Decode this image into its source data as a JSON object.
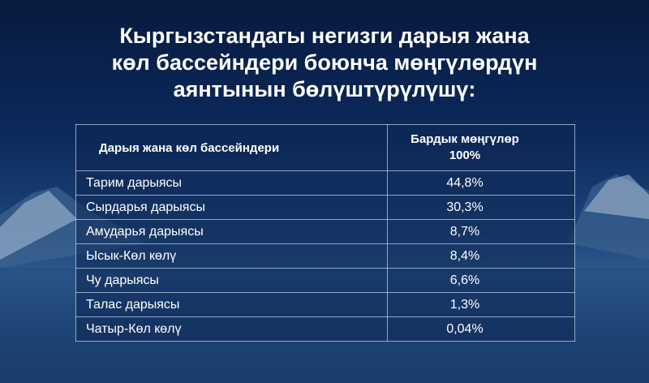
{
  "title_lines": [
    "Кыргызстандагы негизги дарыя жана",
    "көл бассейндери боюнча мөңгүлөрдүн",
    "аянтынын бөлүштүрүлүшү:"
  ],
  "table": {
    "header": [
      "Дарыя жана көл бассейндери",
      [
        "Бардык мөңгүлөр",
        "100%"
      ]
    ],
    "rows": [
      [
        "Тарим дарыясы",
        "44,8%"
      ],
      [
        "Сырдарья дарыясы",
        "30,3%"
      ],
      [
        "Амударья дарыясы",
        "8,7%"
      ],
      [
        "Ысык-Көл көлү",
        "8,4%"
      ],
      [
        "Чу дарыясы",
        "6,6%"
      ],
      [
        "Талас дарыясы",
        "1,3%"
      ],
      [
        "Чатыр-Көл көлү",
        "0,04%"
      ]
    ]
  }
}
